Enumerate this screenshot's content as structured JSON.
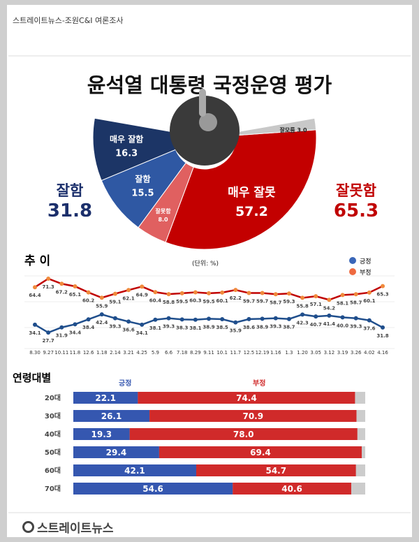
{
  "source": "스트레이트뉴스-조원C&I 여론조사",
  "title": "윤석열 대통령 국정운영 평가",
  "summary": {
    "positive": {
      "label": "잘함",
      "value": "31.8",
      "color": "#1b2f6b"
    },
    "negative": {
      "label": "잘못함",
      "value": "65.3",
      "color": "#c00000"
    }
  },
  "chart_data": [
    {
      "type": "pie",
      "shape": "half-donut",
      "slices": [
        {
          "label": "매우 잘함",
          "value": 16.3,
          "color": "#1c3566"
        },
        {
          "label": "잘함",
          "value": 15.5,
          "color": "#2f58a3"
        },
        {
          "label": "잘못함",
          "value": 8.0,
          "color": "#e06060"
        },
        {
          "label": "매우 잘못",
          "value": 57.2,
          "color": "#c30000"
        },
        {
          "label": "잘모름",
          "value": 3.0,
          "color": "#c8c8c8"
        }
      ]
    },
    {
      "type": "line",
      "title": "추 이",
      "unit_note": "(단위: %)",
      "legend_position": "top-right",
      "grid": true,
      "x": [
        "8.30",
        "9.27",
        "10.11",
        "11.8",
        "12.6",
        "1.18",
        "2.14",
        "3.21",
        "4.25",
        "5.9",
        "6.6",
        "7.18",
        "8.29",
        "9.11",
        "10.1",
        "11.7",
        "12.5",
        "12.19",
        "1.16",
        "1.3",
        "1.20",
        "3.05",
        "3.12",
        "3.19",
        "3.26",
        "4.02",
        "4.16"
      ],
      "series": [
        {
          "name": "긍정",
          "color": "#1f4e8c",
          "marker_color": "#1f4e8c",
          "values": [
            34.1,
            27.7,
            31.9,
            34.4,
            38.4,
            42.4,
            39.3,
            36.6,
            34.1,
            38.1,
            39.3,
            38.3,
            38.1,
            38.9,
            38.5,
            35.9,
            38.6,
            38.9,
            39.3,
            38.7,
            42.3,
            40.7,
            41.4,
            40.0,
            39.3,
            37.6,
            31.8
          ]
        },
        {
          "name": "부정",
          "color": "#c00000",
          "marker_color": "#f08a3c",
          "values": [
            64.4,
            71.3,
            67.2,
            65.1,
            60.2,
            55.9,
            59.1,
            62.1,
            64.9,
            60.4,
            58.8,
            59.5,
            60.3,
            59.5,
            60.1,
            62.2,
            59.7,
            59.7,
            58.7,
            59.3,
            55.8,
            57.1,
            54.2,
            58.1,
            58.7,
            60.1,
            65.3
          ]
        }
      ]
    },
    {
      "type": "bar",
      "stacked": true,
      "orientation": "horizontal",
      "title": "연령대별",
      "categories": [
        "20대",
        "30대",
        "40대",
        "50대",
        "60대",
        "70대"
      ],
      "series": [
        {
          "name": "긍정",
          "color": "#3557b0",
          "values": [
            22.1,
            26.1,
            19.3,
            29.4,
            42.1,
            54.6
          ]
        },
        {
          "name": "부정",
          "color": "#d02a2a",
          "values": [
            74.4,
            70.9,
            78.0,
            69.4,
            54.7,
            40.6
          ]
        }
      ],
      "remainder_color": "#cccccc",
      "xlim": [
        0,
        100
      ]
    }
  ],
  "footer": {
    "logo": "스트레이트뉴스"
  }
}
